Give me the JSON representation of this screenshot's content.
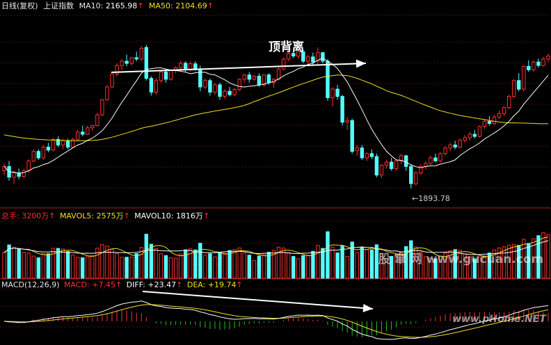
{
  "main_header": {
    "chart_name": "日线(复权)",
    "index_name": "上证指数",
    "ma10_label": "MA10:",
    "ma10_value": "2165.98",
    "ma50_label": "MA50:",
    "ma50_value": "2104.69",
    "up_arrow": "↑"
  },
  "volume_header": {
    "total_label": "总手:",
    "total_value": "3200万",
    "mavol5_label": "MAVOL5:",
    "mavol5_value": "2575万",
    "mavol10_label": "MAVOL10:",
    "mavol10_value": "1816万",
    "up_arrow": "↑"
  },
  "macd_header": {
    "params": "MACD(12,26,9)",
    "macd_label": "MACD:",
    "macd_value": "+7.45",
    "diff_label": "DIFF:",
    "diff_value": "+23.47",
    "dea_label": "DEA:",
    "dea_value": "+19.74",
    "up_arrow": "↑"
  },
  "annotation": {
    "divergence_title": "顶背离",
    "low_label": "1893.78"
  },
  "watermarks": {
    "line1": "股 窜 网 www.gucuan.com",
    "line2": "www.pHome.NET"
  },
  "colors": {
    "background": "#000000",
    "up": "#ff3030",
    "down": "#54ffff",
    "ma_fast": "#ffffff",
    "ma_slow": "#f0e020",
    "grid": "#7a1a1a",
    "macd_pos": "#ff3030",
    "macd_neg": "#20c020"
  },
  "chart_data": [
    {
      "type": "candlestick",
      "series_labels": [
        "MA10",
        "MA50"
      ],
      "ylim": [
        1850,
        2300
      ],
      "grid": "horizontal dotted",
      "annotation_low": 1893.78,
      "candles": [
        [
          1935,
          1952,
          1925,
          1945
        ],
        [
          1945,
          1958,
          1912,
          1920
        ],
        [
          1920,
          1935,
          1905,
          1930
        ],
        [
          1930,
          1940,
          1915,
          1922
        ],
        [
          1922,
          1940,
          1918,
          1935
        ],
        [
          1935,
          1962,
          1930,
          1958
        ],
        [
          1958,
          1985,
          1955,
          1980
        ],
        [
          1980,
          1985,
          1960,
          1965
        ],
        [
          1965,
          1995,
          1960,
          1990
        ],
        [
          1990,
          2000,
          1978,
          1983
        ],
        [
          1983,
          2012,
          1980,
          2008
        ],
        [
          2008,
          2015,
          1990,
          1995
        ],
        [
          1995,
          2010,
          1985,
          2005
        ],
        [
          2005,
          2010,
          1985,
          1990
        ],
        [
          1990,
          2012,
          1988,
          2008
        ],
        [
          2008,
          2030,
          2005,
          2025
        ],
        [
          2025,
          2040,
          2015,
          2020
        ],
        [
          2020,
          2040,
          2018,
          2035
        ],
        [
          2035,
          2042,
          2028,
          2040
        ],
        [
          2040,
          2070,
          2038,
          2065
        ],
        [
          2065,
          2102,
          2062,
          2100
        ],
        [
          2100,
          2135,
          2098,
          2130
        ],
        [
          2130,
          2162,
          2128,
          2160
        ],
        [
          2160,
          2185,
          2155,
          2180
        ],
        [
          2180,
          2195,
          2170,
          2190
        ],
        [
          2190,
          2205,
          2178,
          2185
        ],
        [
          2185,
          2200,
          2180,
          2198
        ],
        [
          2198,
          2212,
          2190,
          2195
        ],
        [
          2195,
          2225,
          2190,
          2220
        ],
        [
          2222,
          2228,
          2145,
          2150
        ],
        [
          2150,
          2155,
          2110,
          2118
        ],
        [
          2118,
          2150,
          2112,
          2145
        ],
        [
          2145,
          2170,
          2140,
          2165
        ],
        [
          2165,
          2172,
          2140,
          2148
        ],
        [
          2148,
          2170,
          2145,
          2168
        ],
        [
          2168,
          2178,
          2162,
          2175
        ],
        [
          2175,
          2190,
          2170,
          2185
        ],
        [
          2185,
          2190,
          2165,
          2170
        ],
        [
          2170,
          2188,
          2165,
          2184
        ],
        [
          2184,
          2190,
          2168,
          2172
        ],
        [
          2172,
          2180,
          2120,
          2130
        ],
        [
          2130,
          2150,
          2125,
          2145
        ],
        [
          2145,
          2150,
          2110,
          2118
        ],
        [
          2118,
          2140,
          2112,
          2135
        ],
        [
          2135,
          2140,
          2100,
          2108
        ],
        [
          2108,
          2125,
          2102,
          2120
        ],
        [
          2120,
          2130,
          2108,
          2112
        ],
        [
          2112,
          2128,
          2108,
          2124
        ],
        [
          2124,
          2150,
          2120,
          2148
        ],
        [
          2148,
          2160,
          2140,
          2158
        ],
        [
          2158,
          2165,
          2140,
          2148
        ],
        [
          2148,
          2158,
          2145,
          2155
        ],
        [
          2155,
          2162,
          2130,
          2135
        ],
        [
          2135,
          2160,
          2130,
          2158
        ],
        [
          2158,
          2162,
          2135,
          2140
        ],
        [
          2140,
          2150,
          2128,
          2148
        ],
        [
          2148,
          2175,
          2145,
          2172
        ],
        [
          2172,
          2198,
          2168,
          2195
        ],
        [
          2195,
          2212,
          2190,
          2208
        ],
        [
          2208,
          2218,
          2198,
          2202
        ],
        [
          2202,
          2215,
          2195,
          2212
        ],
        [
          2212,
          2218,
          2185,
          2190
        ],
        [
          2190,
          2205,
          2178,
          2200
        ],
        [
          2200,
          2210,
          2180,
          2188
        ],
        [
          2190,
          2222,
          2180,
          2210
        ],
        [
          2210,
          2210,
          2185,
          2190
        ],
        [
          2190,
          2195,
          2098,
          2105
        ],
        [
          2105,
          2130,
          2085,
          2125
        ],
        [
          2125,
          2135,
          2100,
          2108
        ],
        [
          2108,
          2112,
          2040,
          2048
        ],
        [
          2048,
          2060,
          2030,
          2052
        ],
        [
          2052,
          2056,
          1975,
          1980
        ],
        [
          1982,
          1995,
          1970,
          1988
        ],
        [
          1988,
          1995,
          1960,
          1965
        ],
        [
          1965,
          1978,
          1958,
          1975
        ],
        [
          1975,
          1985,
          1962,
          1968
        ],
        [
          1968,
          1975,
          1920,
          1925
        ],
        [
          1925,
          1950,
          1918,
          1948
        ],
        [
          1948,
          1960,
          1940,
          1955
        ],
        [
          1955,
          1965,
          1935,
          1940
        ],
        [
          1940,
          1962,
          1935,
          1958
        ],
        [
          1958,
          1975,
          1950,
          1970
        ],
        [
          1970,
          1972,
          1935,
          1945
        ],
        [
          1945,
          1950,
          1893.78,
          1905
        ],
        [
          1905,
          1935,
          1900,
          1930
        ],
        [
          1930,
          1950,
          1925,
          1945
        ],
        [
          1945,
          1958,
          1938,
          1952
        ],
        [
          1952,
          1970,
          1948,
          1965
        ],
        [
          1965,
          1975,
          1955,
          1958
        ],
        [
          1958,
          1978,
          1955,
          1975
        ],
        [
          1975,
          1992,
          1970,
          1988
        ],
        [
          1988,
          2000,
          1980,
          1995
        ],
        [
          1995,
          2005,
          1985,
          1990
        ],
        [
          1990,
          2010,
          1988,
          2006
        ],
        [
          2006,
          2018,
          2000,
          2012
        ],
        [
          2012,
          2025,
          2005,
          2020
        ],
        [
          2020,
          2030,
          2010,
          2015
        ],
        [
          2015,
          2040,
          2012,
          2038
        ],
        [
          2038,
          2055,
          2032,
          2050
        ],
        [
          2050,
          2062,
          2040,
          2045
        ],
        [
          2045,
          2065,
          2042,
          2060
        ],
        [
          2060,
          2075,
          2055,
          2068
        ],
        [
          2068,
          2085,
          2062,
          2082
        ],
        [
          2082,
          2112,
          2078,
          2108
        ],
        [
          2108,
          2148,
          2105,
          2145
        ],
        [
          2145,
          2162,
          2120,
          2125
        ],
        [
          2125,
          2180,
          2120,
          2178
        ],
        [
          2178,
          2192,
          2165,
          2170
        ],
        [
          2170,
          2192,
          2165,
          2188
        ],
        [
          2188,
          2196,
          2175,
          2180
        ],
        [
          2180,
          2200,
          2178,
          2195
        ],
        [
          2195,
          2208,
          2188,
          2202
        ]
      ]
    },
    {
      "type": "bar",
      "series_labels": [
        "MAVOL5",
        "MAVOL10"
      ],
      "unit": "万手",
      "ylim": [
        0,
        4200
      ]
    },
    {
      "type": "bar",
      "series_labels": [
        "DIFF",
        "DEA",
        "MACD"
      ],
      "ylim": [
        -70,
        100
      ],
      "last": {
        "MACD": 7.45,
        "DIFF": 23.47,
        "DEA": 19.74
      }
    }
  ]
}
